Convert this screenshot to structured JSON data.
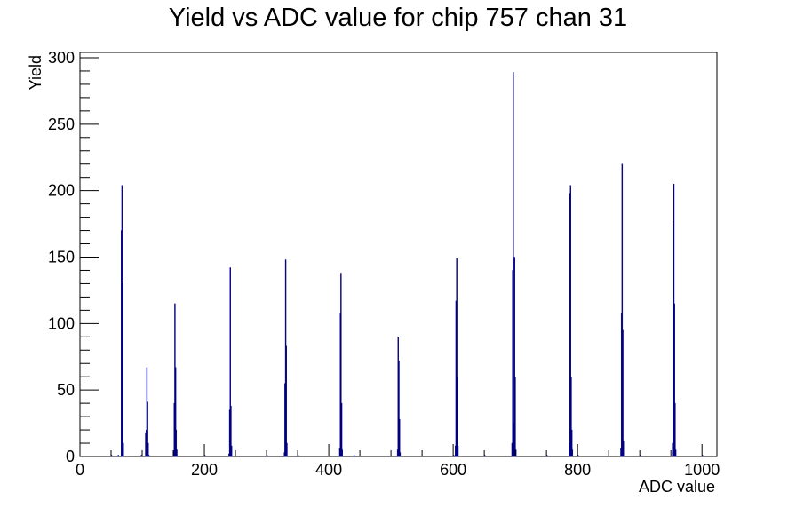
{
  "chart_data": {
    "type": "bar",
    "title": "Yield vs ADC value for chip 757 chan 31",
    "xlabel": "ADC value",
    "ylabel": "Yield",
    "xlim": [
      0,
      1024
    ],
    "ylim": [
      0,
      304
    ],
    "x_ticks": [
      0,
      200,
      400,
      600,
      800,
      1000
    ],
    "y_ticks": [
      0,
      50,
      100,
      150,
      200,
      250,
      300
    ],
    "grid": false,
    "legend": "none",
    "bar_color": "#000080",
    "bins": [
      {
        "x": 50,
        "y": 1
      },
      {
        "x": 61,
        "y": 1
      },
      {
        "x": 66,
        "y": 170
      },
      {
        "x": 67,
        "y": 204
      },
      {
        "x": 68,
        "y": 130
      },
      {
        "x": 69,
        "y": 10
      },
      {
        "x": 98,
        "y": 1
      },
      {
        "x": 105,
        "y": 18
      },
      {
        "x": 106,
        "y": 20
      },
      {
        "x": 107,
        "y": 67
      },
      {
        "x": 108,
        "y": 41
      },
      {
        "x": 109,
        "y": 10
      },
      {
        "x": 110,
        "y": 1
      },
      {
        "x": 150,
        "y": 4
      },
      {
        "x": 151,
        "y": 40
      },
      {
        "x": 152,
        "y": 115
      },
      {
        "x": 153,
        "y": 67
      },
      {
        "x": 154,
        "y": 20
      },
      {
        "x": 155,
        "y": 5
      },
      {
        "x": 200,
        "y": 1
      },
      {
        "x": 239,
        "y": 2
      },
      {
        "x": 240,
        "y": 35
      },
      {
        "x": 241,
        "y": 142
      },
      {
        "x": 242,
        "y": 38
      },
      {
        "x": 243,
        "y": 8
      },
      {
        "x": 300,
        "y": 1
      },
      {
        "x": 328,
        "y": 3
      },
      {
        "x": 329,
        "y": 55
      },
      {
        "x": 330,
        "y": 148
      },
      {
        "x": 331,
        "y": 83
      },
      {
        "x": 332,
        "y": 10
      },
      {
        "x": 350,
        "y": 1
      },
      {
        "x": 417,
        "y": 6
      },
      {
        "x": 418,
        "y": 108
      },
      {
        "x": 419,
        "y": 138
      },
      {
        "x": 420,
        "y": 40
      },
      {
        "x": 421,
        "y": 5
      },
      {
        "x": 440,
        "y": 1
      },
      {
        "x": 510,
        "y": 5
      },
      {
        "x": 511,
        "y": 90
      },
      {
        "x": 512,
        "y": 72
      },
      {
        "x": 513,
        "y": 28
      },
      {
        "x": 514,
        "y": 3
      },
      {
        "x": 600,
        "y": 1
      },
      {
        "x": 603,
        "y": 8
      },
      {
        "x": 604,
        "y": 117
      },
      {
        "x": 605,
        "y": 149
      },
      {
        "x": 606,
        "y": 60
      },
      {
        "x": 607,
        "y": 8
      },
      {
        "x": 650,
        "y": 1
      },
      {
        "x": 694,
        "y": 10
      },
      {
        "x": 695,
        "y": 140
      },
      {
        "x": 696,
        "y": 289
      },
      {
        "x": 697,
        "y": 25
      },
      {
        "x": 698,
        "y": 150
      },
      {
        "x": 699,
        "y": 60
      },
      {
        "x": 700,
        "y": 5
      },
      {
        "x": 750,
        "y": 1
      },
      {
        "x": 786,
        "y": 10
      },
      {
        "x": 787,
        "y": 198
      },
      {
        "x": 788,
        "y": 204
      },
      {
        "x": 789,
        "y": 60
      },
      {
        "x": 790,
        "y": 20
      },
      {
        "x": 791,
        "y": 5
      },
      {
        "x": 800,
        "y": 1
      },
      {
        "x": 869,
        "y": 6
      },
      {
        "x": 870,
        "y": 108
      },
      {
        "x": 871,
        "y": 220
      },
      {
        "x": 872,
        "y": 95
      },
      {
        "x": 873,
        "y": 12
      },
      {
        "x": 900,
        "y": 1
      },
      {
        "x": 952,
        "y": 10
      },
      {
        "x": 953,
        "y": 173
      },
      {
        "x": 954,
        "y": 205
      },
      {
        "x": 955,
        "y": 115
      },
      {
        "x": 956,
        "y": 40
      },
      {
        "x": 957,
        "y": 5
      },
      {
        "x": 1000,
        "y": 1
      }
    ]
  }
}
